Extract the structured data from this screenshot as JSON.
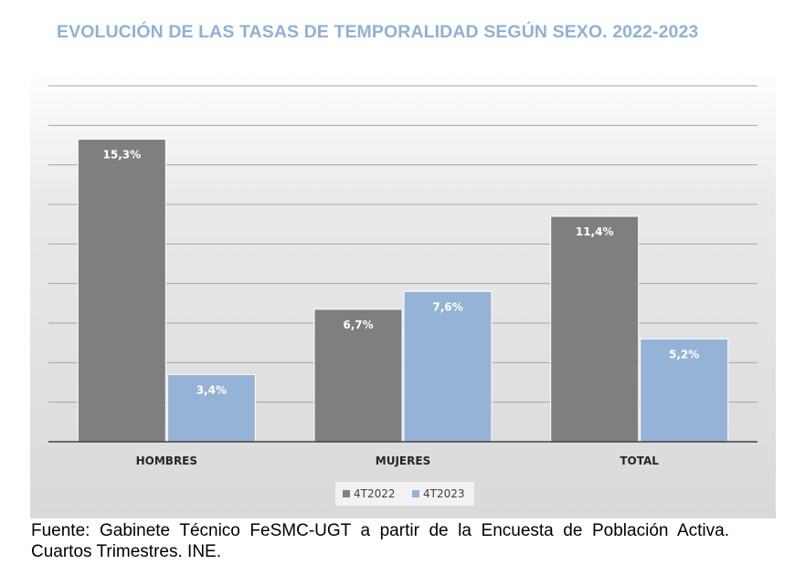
{
  "title": "EVOLUCIÓN DE LAS TASAS DE TEMPORALIDAD SEGÚN SEXO. 2022-2023",
  "source_note": "Fuente: Gabinete Técnico FeSMC-UGT a partir de la Encuesta de Población Activa. Cuartos Trimestres. INE.",
  "colors": {
    "series_2022": "#7f7f7f",
    "series_2023": "#95b3d7",
    "title": "#8eb1d8"
  },
  "chart_data": {
    "type": "bar",
    "title": "EVOLUCIÓN DE LAS TASAS DE TEMPORALIDAD SEGÚN SEXO. 2022-2023",
    "categories": [
      "HOMBRES",
      "MUJERES",
      "TOTAL"
    ],
    "series": [
      {
        "name": "4T2022",
        "values": [
          15.3,
          6.7,
          11.4
        ],
        "labels": [
          "15,3%",
          "6,7%",
          "11,4%"
        ],
        "color": "#7f7f7f"
      },
      {
        "name": "4T2023",
        "values": [
          3.4,
          7.6,
          5.2
        ],
        "labels": [
          "3,4%",
          "7,6%",
          "5,2%"
        ],
        "color": "#95b3d7"
      }
    ],
    "xlabel": "",
    "ylabel": "",
    "ylim": [
      0,
      18
    ],
    "grid": true,
    "legend": "bottom-center"
  }
}
